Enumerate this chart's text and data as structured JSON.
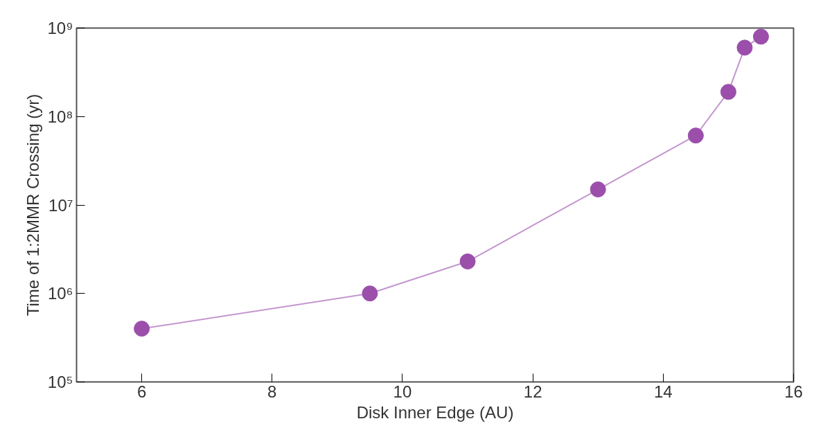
{
  "chart_data": {
    "type": "line",
    "xlabel": "Disk Inner Edge (AU)",
    "ylabel": "Time of 1:2MMR Crossing (yr)",
    "x": [
      6,
      9.5,
      11,
      13,
      14.5,
      15,
      15.25,
      15.5
    ],
    "series": [
      {
        "color": "#9b4fab",
        "values": [
          400000,
          1000000,
          2300000,
          15000000,
          61000000,
          190000000,
          600000000,
          800000000
        ]
      }
    ],
    "xlim": [
      5,
      16
    ],
    "xticks": [
      6,
      8,
      10,
      12,
      14,
      16
    ],
    "ylim": [
      100000,
      1000000000
    ],
    "yticks": [
      {
        "value": 100000,
        "label": "10⁵"
      },
      {
        "value": 1000000,
        "label": "10⁶"
      },
      {
        "value": 10000000,
        "label": "10⁷"
      },
      {
        "value": 100000000,
        "label": "10⁸"
      },
      {
        "value": 1000000000,
        "label": "10⁹"
      }
    ],
    "log": "y",
    "grid": false,
    "marker": "circle",
    "line_style": "solid"
  }
}
